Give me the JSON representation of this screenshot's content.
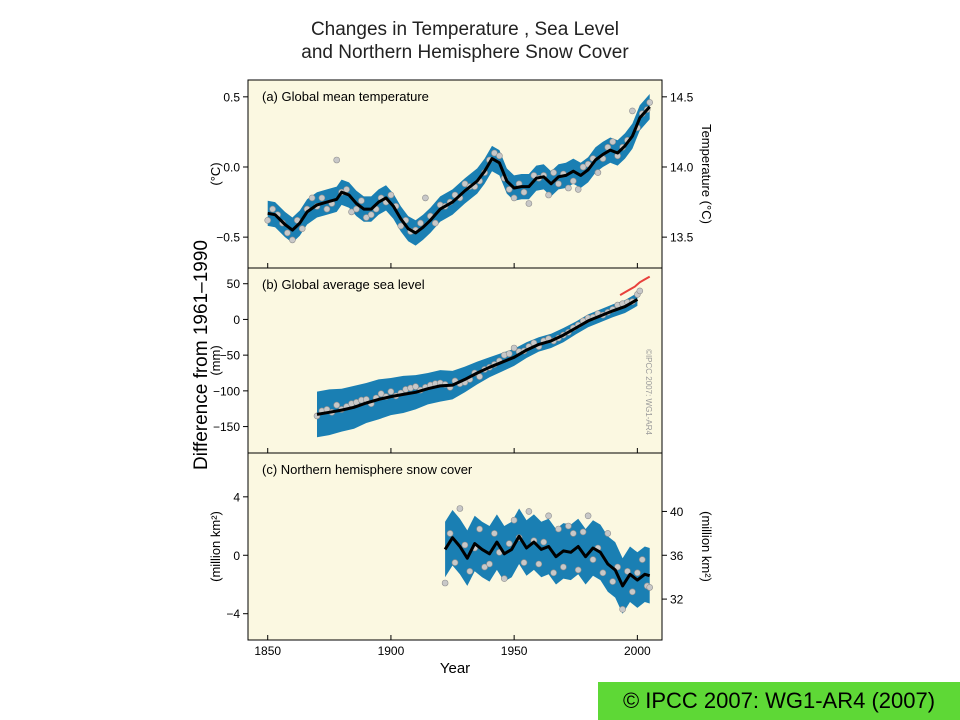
{
  "title_line1": "Changes in Temperature , Sea Level",
  "title_line2": "and Northern Hemisphere Snow Cover",
  "shared_ylabel": "Difference from 1961–1990",
  "xlabel": "Year",
  "x_ticks": [
    1850,
    1900,
    1950,
    2000
  ],
  "watermark": "©IPCC 2007: WG1-AR4",
  "copyright": "© IPCC 2007: WG1-AR4 (2007)",
  "colors": {
    "plot_background": "#fbf8e1",
    "band": "#1a7fb3",
    "smooth_line": "#000000",
    "points": "#c8c8c8",
    "satellite_line": "#e8413c",
    "copyright_background": "#5ed836"
  },
  "chart_data": [
    {
      "type": "line",
      "panel": "a",
      "title": "(a) Global mean temperature",
      "ylabel_left": "(°C)",
      "ylabel_right": "Temperature (°C)",
      "xlim": [
        1842,
        2010
      ],
      "ylim": [
        -0.72,
        0.62
      ],
      "left_ticks": [
        0.5,
        0.0,
        -0.5
      ],
      "left_tick_labels": [
        "0.5",
        "0.0",
        "−0.5"
      ],
      "right_ticks": [
        0.5,
        0.0,
        -0.5
      ],
      "right_tick_labels": [
        "14.5",
        "14.0",
        "13.5"
      ],
      "smooth": {
        "x": [
          1850,
          1853,
          1857,
          1860,
          1863,
          1866,
          1870,
          1874,
          1878,
          1880,
          1883,
          1886,
          1889,
          1892,
          1895,
          1898,
          1901,
          1904,
          1907,
          1910,
          1913,
          1916,
          1920,
          1925,
          1930,
          1935,
          1938,
          1941,
          1944,
          1947,
          1950,
          1953,
          1956,
          1959,
          1962,
          1965,
          1968,
          1971,
          1974,
          1977,
          1980,
          1983,
          1986,
          1989,
          1992,
          1995,
          1998,
          2001,
          2005
        ],
        "y": [
          -0.33,
          -0.34,
          -0.41,
          -0.45,
          -0.4,
          -0.32,
          -0.27,
          -0.25,
          -0.23,
          -0.18,
          -0.2,
          -0.26,
          -0.3,
          -0.3,
          -0.25,
          -0.22,
          -0.28,
          -0.37,
          -0.44,
          -0.47,
          -0.43,
          -0.38,
          -0.3,
          -0.25,
          -0.17,
          -0.1,
          -0.03,
          0.06,
          0.03,
          -0.1,
          -0.15,
          -0.14,
          -0.14,
          -0.08,
          -0.07,
          -0.12,
          -0.07,
          -0.06,
          -0.03,
          -0.06,
          -0.02,
          0.05,
          0.09,
          0.12,
          0.1,
          0.15,
          0.22,
          0.35,
          0.43
        ]
      },
      "band_halfwidth": 0.09,
      "points": {
        "x": [
          1850,
          1852,
          1854,
          1856,
          1858,
          1860,
          1862,
          1864,
          1866,
          1868,
          1870,
          1872,
          1874,
          1876,
          1878,
          1880,
          1882,
          1884,
          1886,
          1888,
          1890,
          1892,
          1894,
          1896,
          1898,
          1900,
          1902,
          1904,
          1906,
          1908,
          1910,
          1912,
          1914,
          1916,
          1918,
          1920,
          1922,
          1924,
          1926,
          1928,
          1930,
          1932,
          1934,
          1936,
          1938,
          1940,
          1942,
          1944,
          1946,
          1948,
          1950,
          1952,
          1954,
          1956,
          1958,
          1960,
          1962,
          1964,
          1966,
          1968,
          1970,
          1972,
          1974,
          1976,
          1978,
          1980,
          1982,
          1984,
          1986,
          1988,
          1990,
          1992,
          1994,
          1996,
          1998,
          2000,
          2002,
          2004,
          2005
        ],
        "y": [
          -0.38,
          -0.3,
          -0.34,
          -0.4,
          -0.47,
          -0.52,
          -0.38,
          -0.44,
          -0.3,
          -0.22,
          -0.28,
          -0.22,
          -0.3,
          -0.26,
          0.05,
          -0.18,
          -0.16,
          -0.32,
          -0.3,
          -0.24,
          -0.36,
          -0.34,
          -0.3,
          -0.22,
          -0.25,
          -0.2,
          -0.28,
          -0.42,
          -0.38,
          -0.46,
          -0.45,
          -0.4,
          -0.22,
          -0.35,
          -0.4,
          -0.27,
          -0.28,
          -0.25,
          -0.2,
          -0.22,
          -0.12,
          -0.14,
          -0.14,
          -0.1,
          -0.04,
          0.05,
          0.1,
          0.08,
          -0.08,
          -0.16,
          -0.22,
          -0.12,
          -0.18,
          -0.26,
          -0.06,
          -0.08,
          -0.06,
          -0.2,
          -0.04,
          -0.12,
          -0.05,
          -0.15,
          -0.1,
          -0.16,
          0.0,
          0.02,
          0.06,
          -0.04,
          0.06,
          0.14,
          0.18,
          0.08,
          0.14,
          0.19,
          0.4,
          0.28,
          0.38,
          0.41,
          0.46
        ]
      }
    },
    {
      "type": "line",
      "panel": "b",
      "title": "(b) Global average sea level",
      "ylabel_left": "(mm)",
      "xlim": [
        1842,
        2010
      ],
      "ylim": [
        -187,
        72
      ],
      "left_ticks": [
        50,
        0,
        -50,
        -100,
        -150
      ],
      "left_tick_labels": [
        "50",
        "0",
        "−50",
        "−100",
        "−150"
      ],
      "smooth": {
        "x": [
          1870,
          1875,
          1880,
          1885,
          1890,
          1895,
          1900,
          1905,
          1910,
          1915,
          1920,
          1925,
          1930,
          1935,
          1940,
          1945,
          1950,
          1955,
          1960,
          1965,
          1970,
          1975,
          1980,
          1985,
          1990,
          1995,
          2000
        ],
        "y": [
          -133,
          -130,
          -127,
          -123,
          -117,
          -112,
          -108,
          -105,
          -102,
          -97,
          -93,
          -92,
          -84,
          -75,
          -67,
          -60,
          -53,
          -43,
          -35,
          -30,
          -22,
          -12,
          -2,
          5,
          12,
          18,
          28
        ]
      },
      "band_halfwidth": [
        32,
        32,
        30,
        30,
        28,
        28,
        26,
        26,
        24,
        22,
        22,
        20,
        18,
        16,
        14,
        13,
        12,
        11,
        10,
        10,
        10,
        9,
        9,
        9,
        9,
        9,
        9
      ],
      "points": {
        "x": [
          1870,
          1872,
          1874,
          1876,
          1878,
          1880,
          1882,
          1884,
          1886,
          1888,
          1890,
          1892,
          1894,
          1896,
          1898,
          1900,
          1902,
          1904,
          1906,
          1908,
          1910,
          1912,
          1914,
          1916,
          1918,
          1920,
          1922,
          1924,
          1926,
          1928,
          1930,
          1932,
          1934,
          1936,
          1938,
          1940,
          1942,
          1944,
          1946,
          1948,
          1950,
          1952,
          1954,
          1956,
          1958,
          1960,
          1962,
          1964,
          1966,
          1968,
          1970,
          1972,
          1974,
          1976,
          1978,
          1980,
          1982,
          1984,
          1986,
          1988,
          1990,
          1992,
          1994,
          1996,
          1998,
          2000,
          2001
        ],
        "y": [
          -135,
          -128,
          -126,
          -130,
          -120,
          -126,
          -122,
          -118,
          -116,
          -113,
          -112,
          -118,
          -110,
          -104,
          -108,
          -101,
          -107,
          -103,
          -98,
          -96,
          -94,
          -99,
          -95,
          -92,
          -90,
          -89,
          -91,
          -95,
          -86,
          -90,
          -88,
          -84,
          -75,
          -80,
          -70,
          -67,
          -63,
          -58,
          -50,
          -48,
          -40,
          -45,
          -44,
          -38,
          -33,
          -38,
          -30,
          -27,
          -30,
          -26,
          -22,
          -18,
          -12,
          -8,
          -2,
          2,
          3,
          8,
          6,
          10,
          14,
          20,
          22,
          24,
          25,
          35,
          40
        ]
      },
      "satellite": {
        "x": [
          1993,
          1995,
          1997,
          1999,
          2001,
          2003,
          2005
        ],
        "y": [
          34,
          38,
          42,
          46,
          52,
          56,
          60
        ]
      }
    },
    {
      "type": "line",
      "panel": "c",
      "title": "(c) Northern hemisphere snow cover",
      "ylabel_left": "(million km²)",
      "ylabel_right": "(million km²)",
      "xlim": [
        1842,
        2010
      ],
      "ylim": [
        -5.8,
        7.0
      ],
      "left_ticks": [
        4,
        0,
        -4
      ],
      "left_tick_labels": [
        "4",
        "0",
        "−4"
      ],
      "right_ticks": [
        3,
        0,
        -3
      ],
      "right_tick_labels": [
        "40",
        "36",
        "32"
      ],
      "smooth": {
        "x": [
          1922,
          1925,
          1928,
          1931,
          1934,
          1937,
          1940,
          1943,
          1946,
          1949,
          1952,
          1955,
          1958,
          1961,
          1964,
          1967,
          1970,
          1973,
          1976,
          1979,
          1982,
          1985,
          1988,
          1991,
          1994,
          1997,
          2000,
          2003,
          2005
        ],
        "y": [
          0.4,
          1.2,
          0.6,
          -0.2,
          0.8,
          0.4,
          0.1,
          0.9,
          0.1,
          0.4,
          1.3,
          0.5,
          0.9,
          0.4,
          0.6,
          -0.1,
          0.3,
          0.2,
          0.6,
          -0.1,
          0.5,
          0.2,
          -0.6,
          -1.0,
          -2.1,
          -1.3,
          -1.7,
          -1.3,
          -1.4
        ]
      },
      "band_halfwidth": 1.9,
      "points": {
        "x": [
          1922,
          1924,
          1926,
          1928,
          1930,
          1932,
          1934,
          1936,
          1938,
          1940,
          1942,
          1944,
          1946,
          1948,
          1950,
          1952,
          1954,
          1956,
          1958,
          1960,
          1962,
          1964,
          1966,
          1968,
          1970,
          1972,
          1974,
          1976,
          1978,
          1980,
          1982,
          1984,
          1986,
          1988,
          1990,
          1992,
          1994,
          1996,
          1998,
          2000,
          2002,
          2004,
          2005
        ],
        "y": [
          -1.9,
          1.5,
          -0.5,
          3.2,
          0.7,
          -1.1,
          0.5,
          1.8,
          -0.8,
          -0.6,
          1.5,
          0.2,
          -1.6,
          0.8,
          2.4,
          1.2,
          -0.5,
          3.0,
          1.0,
          -0.6,
          0.9,
          2.7,
          -1.2,
          1.8,
          -0.8,
          2.0,
          1.5,
          -1.0,
          1.6,
          2.7,
          -0.3,
          0.5,
          -1.2,
          1.5,
          -1.8,
          -0.8,
          -3.7,
          -1.1,
          -2.5,
          -1.2,
          -0.3,
          -2.1,
          -2.2
        ]
      }
    }
  ]
}
